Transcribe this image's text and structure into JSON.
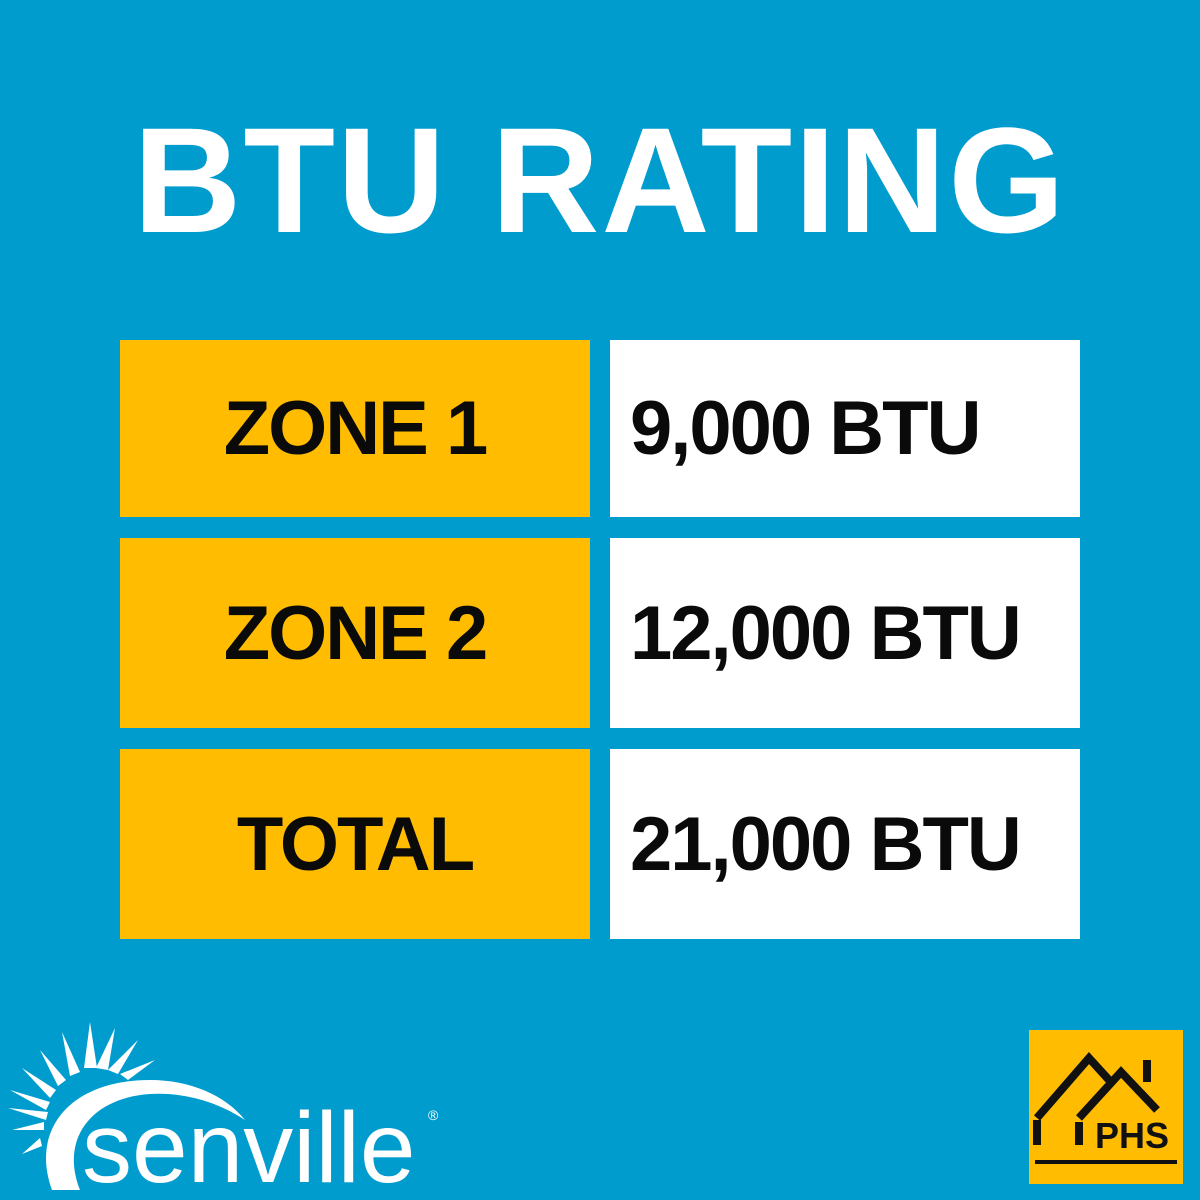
{
  "title": "BTU RATING",
  "rows": [
    {
      "label": "ZONE 1",
      "value": "9,000 BTU"
    },
    {
      "label": "ZONE 2",
      "value": "12,000 BTU"
    },
    {
      "label": "TOTAL",
      "value": "21,000 BTU"
    }
  ],
  "logos": {
    "senville": "senville",
    "phs": "PHS"
  },
  "colors": {
    "background": "#019cce",
    "label_bg": "#ffbc00",
    "value_bg": "#ffffff",
    "text": "#0a0a0a"
  }
}
